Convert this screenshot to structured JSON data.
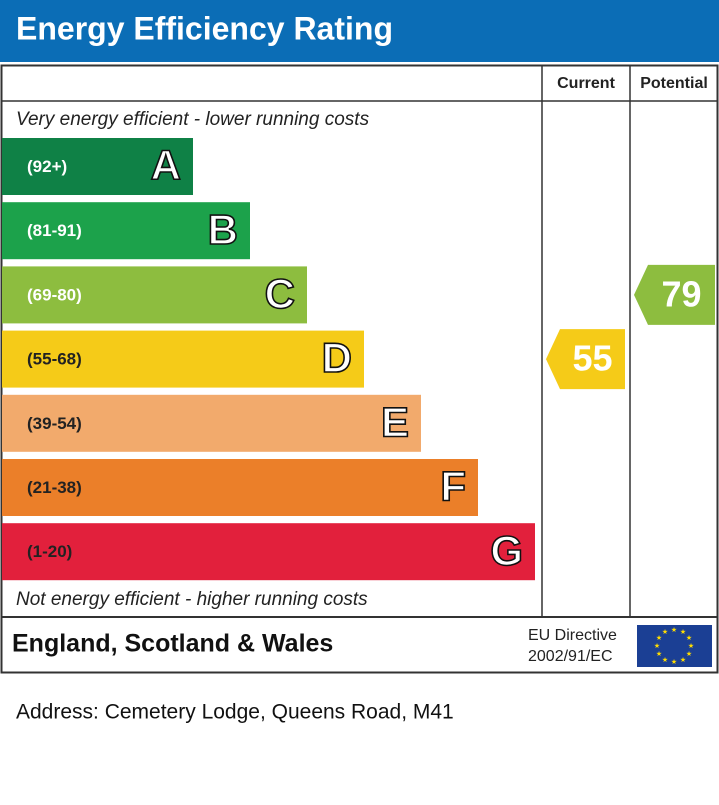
{
  "title": "Energy Efficiency Rating",
  "columns": {
    "current": "Current",
    "potential": "Potential"
  },
  "top_note": "Very energy efficient - lower running costs",
  "bands": [
    {
      "range": "(92+)",
      "letter": "A",
      "color": "#0f8146"
    },
    {
      "range": "(81-91)",
      "letter": "B",
      "color": "#1ca24b"
    },
    {
      "range": "(69-80)",
      "letter": "C",
      "color": "#8dbd3f"
    },
    {
      "range": "(55-68)",
      "letter": "D",
      "color": "#f5cb18"
    },
    {
      "range": "(39-54)",
      "letter": "E",
      "color": "#f2aa6c"
    },
    {
      "range": "(21-38)",
      "letter": "F",
      "color": "#eb7f29"
    },
    {
      "range": "(1-20)",
      "letter": "G",
      "color": "#e2203c"
    }
  ],
  "bottom_note": "Not energy efficient - higher running costs",
  "current": 55,
  "potential": 79,
  "footer": {
    "region": "England, Scotland & Wales",
    "directive_line1": "EU Directive",
    "directive_line2": "2002/91/EC"
  },
  "address": "Address: Cemetery Lodge, Queens Road, M41"
}
